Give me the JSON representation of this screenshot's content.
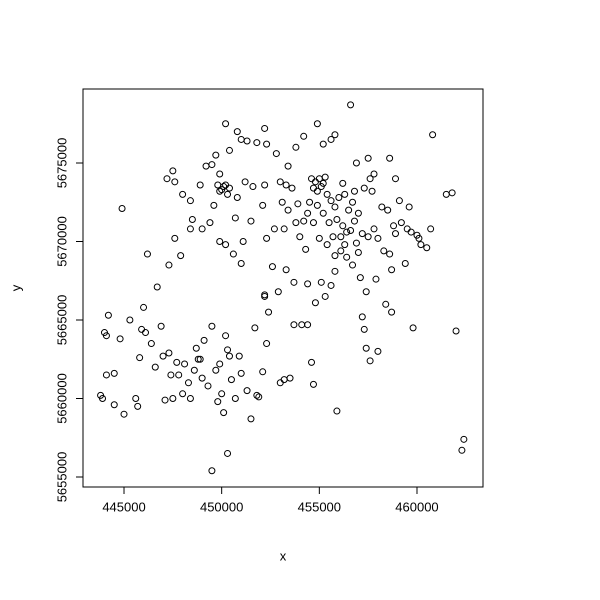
{
  "chart_data": {
    "type": "scatter",
    "xlabel": "x",
    "ylabel": "y",
    "xlim": [
      442900,
      463380
    ],
    "ylim": [
      5654363,
      5679713
    ],
    "xticks": [
      445000,
      450000,
      455000,
      460000
    ],
    "yticks": [
      5655000,
      5660000,
      5665000,
      5670000,
      5675000
    ],
    "color": "#000000",
    "x": [
      456600,
      460800,
      444900,
      449500,
      450300,
      462400,
      462300,
      462000,
      461500,
      461800,
      455900,
      443800,
      443900,
      444100,
      444200,
      444000,
      444500,
      444100,
      444500,
      444800,
      445000,
      445300,
      445600,
      445700,
      445800,
      445900,
      446000,
      446100,
      446400,
      446600,
      446700,
      446900,
      447000,
      447100,
      447300,
      447400,
      447500,
      447700,
      447800,
      448000,
      448100,
      448300,
      448400,
      448600,
      448700,
      448800,
      448900,
      449000,
      449100,
      449300,
      449500,
      449700,
      449900,
      450000,
      450100,
      450200,
      450300,
      450400,
      450500,
      450700,
      450900,
      451000,
      451300,
      451500,
      451700,
      451800,
      452100,
      452300,
      453000,
      453200,
      453500,
      454400,
      454600,
      454700,
      452400,
      452200,
      452900,
      453700,
      457200,
      457300,
      457400,
      457600,
      458000,
      458400,
      458700,
      459800,
      451900,
      449800,
      447200,
      447600,
      447500,
      448000,
      448400,
      448500,
      448900,
      449200,
      449500,
      449700,
      449900,
      450200,
      450400,
      450800,
      451000,
      451300,
      451800,
      452200,
      452300,
      452800,
      453400,
      453000,
      452200,
      451600,
      451200,
      450800,
      450100,
      449900,
      450300,
      450000,
      450200,
      449800,
      450400,
      449600,
      449400,
      449000,
      449900,
      450200,
      450600,
      451000,
      451100,
      450700,
      451500,
      452100,
      452300,
      452600,
      452200,
      447600,
      447900,
      448400,
      447300,
      446200,
      452700,
      453200,
      453300,
      453700,
      453100,
      453400,
      453800,
      454000,
      454300,
      454200,
      454500,
      454700,
      454800,
      455000,
      455200,
      454900,
      455100,
      455300,
      454600,
      455400,
      455600,
      455800,
      455900,
      456200,
      456400,
      456100,
      456300,
      456600,
      456800,
      456500,
      456000,
      456300,
      456800,
      457000,
      457200,
      457500,
      457800,
      458000,
      458300,
      458600,
      458900,
      459200,
      459600,
      459700,
      460000,
      460200,
      460500,
      460700,
      459400,
      458700,
      457900,
      457400,
      457100,
      456700,
      456400,
      455800,
      455400,
      455000,
      454700,
      454400,
      455100,
      455600,
      455800,
      455300,
      454800,
      454100,
      453800,
      454200,
      454900,
      455600,
      455800,
      455200,
      456900,
      457500,
      457800,
      458600,
      458900,
      457600,
      457300,
      458200,
      458500,
      459100,
      457000,
      456900,
      456100,
      455700,
      455500,
      455200,
      454900,
      454400,
      453900,
      453600,
      453300,
      456200,
      456700,
      457700,
      458800,
      459500,
      460100
    ],
    "values": [
      5678700,
      5676800,
      5672100,
      5655400,
      5656500,
      5657400,
      5656700,
      5664300,
      5673000,
      5673100,
      5659200,
      5660200,
      5660000,
      5664000,
      5665300,
      5664200,
      5661600,
      5661500,
      5659600,
      5663800,
      5659000,
      5665000,
      5660000,
      5659500,
      5662600,
      5664400,
      5665800,
      5664200,
      5663500,
      5662000,
      5667100,
      5664600,
      5662700,
      5659900,
      5662900,
      5661500,
      5660000,
      5662300,
      5661500,
      5660300,
      5662200,
      5661000,
      5660000,
      5661800,
      5663200,
      5662500,
      5662500,
      5661300,
      5663700,
      5660800,
      5664600,
      5661800,
      5662200,
      5660300,
      5659100,
      5664000,
      5663100,
      5662700,
      5661200,
      5660000,
      5662700,
      5661600,
      5660500,
      5658700,
      5664500,
      5660200,
      5661700,
      5663500,
      5661000,
      5661200,
      5661300,
      5664700,
      5662300,
      5660900,
      5665500,
      5666500,
      5666800,
      5664700,
      5665200,
      5664400,
      5663200,
      5662400,
      5663000,
      5666000,
      5665500,
      5664500,
      5660100,
      5659800,
      5674000,
      5673800,
      5674500,
      5673000,
      5672600,
      5671400,
      5673600,
      5674800,
      5674900,
      5675500,
      5674300,
      5677500,
      5675800,
      5677000,
      5676500,
      5676400,
      5676300,
      5677200,
      5676200,
      5675600,
      5674800,
      5673800,
      5673600,
      5673500,
      5673800,
      5672800,
      5673500,
      5673200,
      5673000,
      5673300,
      5673600,
      5673600,
      5673400,
      5672300,
      5671200,
      5670800,
      5670000,
      5669800,
      5669200,
      5668600,
      5670000,
      5671500,
      5671300,
      5672300,
      5670200,
      5668400,
      5666600,
      5670200,
      5669100,
      5670800,
      5668500,
      5669200,
      5670800,
      5670800,
      5668200,
      5667400,
      5672500,
      5672000,
      5671200,
      5670300,
      5669500,
      5671300,
      5672500,
      5673400,
      5673800,
      5674000,
      5673700,
      5673200,
      5673500,
      5674100,
      5674000,
      5673000,
      5672600,
      5672200,
      5671400,
      5671000,
      5670600,
      5670300,
      5669800,
      5670700,
      5671300,
      5672000,
      5672800,
      5673000,
      5673200,
      5671800,
      5670500,
      5670300,
      5670800,
      5670200,
      5669400,
      5669200,
      5670500,
      5671200,
      5672200,
      5670600,
      5670400,
      5669800,
      5669600,
      5670800,
      5668600,
      5668200,
      5667600,
      5666800,
      5667700,
      5668500,
      5669000,
      5669100,
      5669800,
      5670200,
      5671200,
      5667300,
      5667400,
      5667200,
      5668100,
      5666500,
      5666100,
      5664700,
      5676000,
      5676700,
      5677500,
      5676500,
      5676800,
      5676200,
      5675000,
      5675300,
      5674300,
      5675300,
      5674000,
      5674000,
      5673400,
      5672200,
      5672000,
      5672600,
      5669300,
      5669900,
      5669400,
      5670300,
      5671200,
      5671800,
      5672300,
      5671800,
      5672400,
      5673400,
      5673600,
      5673700,
      5672500,
      5673200,
      5671000,
      5670800,
      5670200
    ]
  }
}
